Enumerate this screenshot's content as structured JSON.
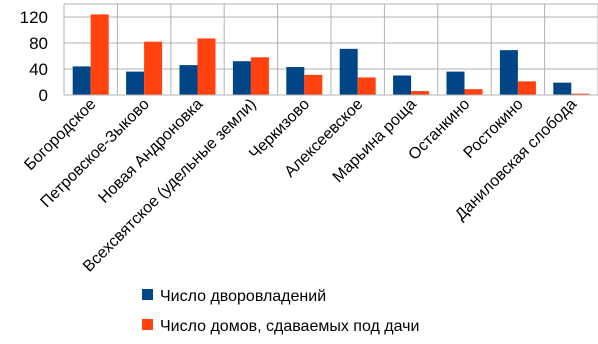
{
  "chart_data": {
    "type": "bar",
    "categories": [
      "Богородское",
      "Петровское-Зыково",
      "Новая Андроновка",
      "Всехсвятское (удельные земли)",
      "Черкизово",
      "Алексеевское",
      "Марьина роща",
      "Останкино",
      "Ростокино",
      "Даниловская слобода"
    ],
    "series": [
      {
        "name": "Число дворовладений",
        "color": "#004586",
        "values": [
          44,
          36,
          46,
          52,
          43,
          71,
          30,
          36,
          69,
          19
        ]
      },
      {
        "name": "Число домов, сдаваемых под дачи",
        "color": "#ff420e",
        "values": [
          124,
          82,
          87,
          58,
          31,
          27,
          6,
          9,
          21,
          2
        ]
      }
    ],
    "yticks": [
      "0",
      "40",
      "80",
      "120"
    ],
    "ylim": [
      0,
      140
    ],
    "grid": true,
    "legend_position": "bottom"
  }
}
